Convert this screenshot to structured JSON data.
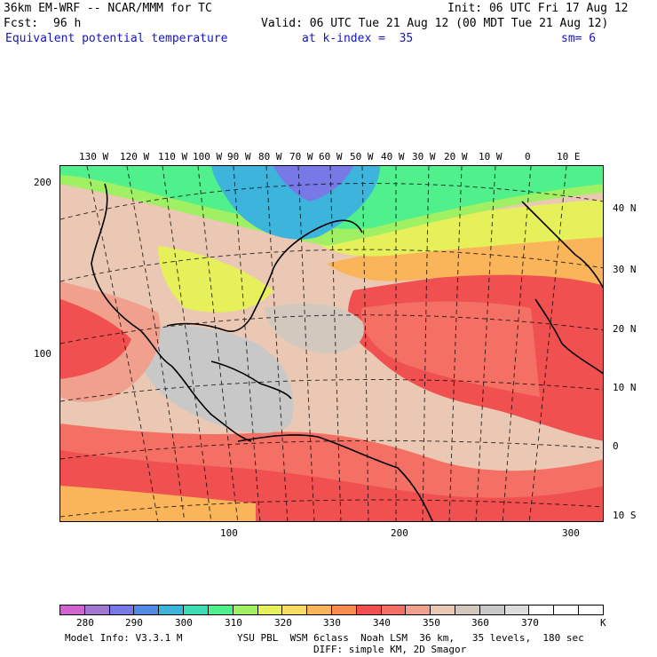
{
  "header": {
    "model_title": "36km EM-WRF -- NCAR/MMM for TC",
    "init": "Init: 06 UTC Fri 17 Aug 12",
    "fcst_label": "Fcst:",
    "fcst_value": "96 h",
    "valid": "Valid: 06 UTC Tue 21 Aug 12 (00 MDT Tue 21 Aug 12)",
    "field_name": "Equivalent potential temperature",
    "level": "at k-index =  35",
    "smoothing": "sm= 6"
  },
  "map": {
    "lon_labels": [
      "130 W",
      "120 W",
      "110 W",
      "100 W",
      "90 W",
      "80 W",
      "70 W",
      "60 W",
      "50 W",
      "40 W",
      "30 W",
      "20 W",
      "10 W",
      "0",
      "10 E"
    ],
    "lat_labels": [
      "40 N",
      "30 N",
      "20 N",
      "10 N",
      "0",
      "10 S"
    ],
    "grid_y_labels": [
      "200",
      "100"
    ],
    "grid_x_labels": [
      "100",
      "200",
      "300"
    ]
  },
  "colorbar": {
    "colors": [
      "#d264d2",
      "#a078d2",
      "#7878e6",
      "#508ce6",
      "#3cb4dc",
      "#3cdcb4",
      "#50f08c",
      "#a0f064",
      "#e6f05a",
      "#fadc64",
      "#fab45a",
      "#fa8c50",
      "#f05050",
      "#f57064",
      "#f0a08c",
      "#ebc8b4",
      "#d2c8be",
      "#c8c8c8",
      "#dcdcdc",
      "#ffffff",
      "#ffffff",
      "#ffffff"
    ],
    "labels": [
      "280",
      "290",
      "300",
      "310",
      "320",
      "330",
      "340",
      "350",
      "360",
      "370"
    ],
    "unit": "K"
  },
  "footer": {
    "model_info": "Model Info: V3.3.1 M",
    "physics": "YSU PBL  WSM 6class  Noah LSM  36 km,   35 levels,  180 sec",
    "diffusion": "DIFF: simple KM, 2D Smagor"
  },
  "fill_colors": {
    "cold": "#3cdcb4",
    "cyan": "#3cb4dc",
    "blue": "#7878e6",
    "green": "#50f08c",
    "lime": "#a0f064",
    "yellow": "#e6f05a",
    "orange": "#fab45a",
    "red": "#f05050",
    "salmon": "#f57064",
    "peach": "#f0a08c",
    "beige": "#ebc8b4",
    "gray": "#c8c8c8",
    "lightgray": "#dcdcdc"
  }
}
